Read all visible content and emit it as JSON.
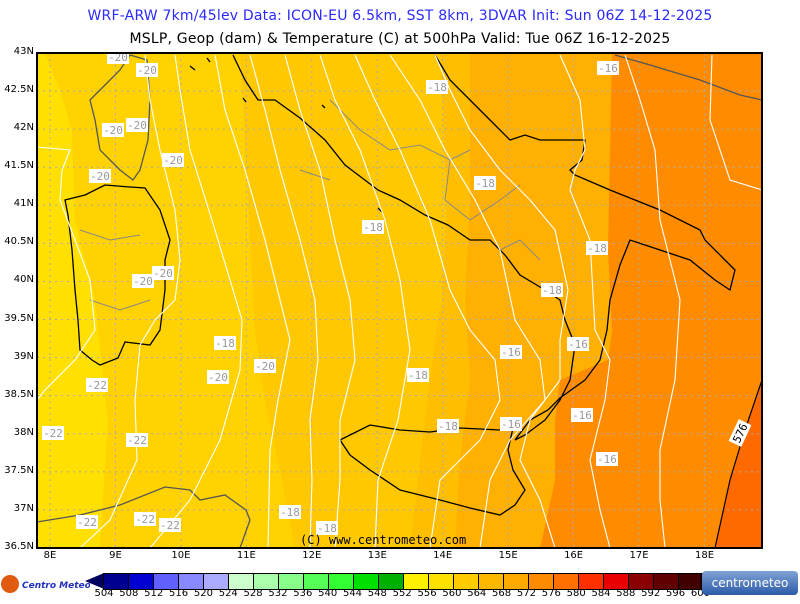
{
  "header": {
    "title": "WRF-ARW 7km/45lev  Data: ICON-EU 6.5km, SST 8km, 3DVAR  Init: Sun 06Z 14-12-2025",
    "subtitle": "MSLP, Geop (dam) & Temperature (C) at 500hPa  Valid: Tue 06Z 16-12-2025"
  },
  "map": {
    "lat_labels": [
      "43N",
      "42.5N",
      "42N",
      "41.5N",
      "41N",
      "40.5N",
      "40N",
      "39.5N",
      "39N",
      "38.5N",
      "38N",
      "37.5N",
      "37N",
      "36.5N"
    ],
    "lon_labels": [
      "8E",
      "9E",
      "10E",
      "11E",
      "12E",
      "13E",
      "14E",
      "15E",
      "16E",
      "17E",
      "18E"
    ],
    "temperature_labels": [
      "-20",
      "-20",
      "-20",
      "-20",
      "-20",
      "-20",
      "-20",
      "-20",
      "-18",
      "-16",
      "-18",
      "-18",
      "-18",
      "-18",
      "-16",
      "-16",
      "-18",
      "-20",
      "-20",
      "-22",
      "-18",
      "-22",
      "-22",
      "-18",
      "-16",
      "-16",
      "-16",
      "-18",
      "-18",
      "-22",
      "-22",
      "-22"
    ],
    "geopotential_labels": [
      "576"
    ],
    "copyright": "(C) www.centrometeo.com",
    "colors": {
      "contour_lines": "#ffffff",
      "coastline": "#000000",
      "borders": "#999999",
      "grid": "#aaaaaa"
    }
  },
  "colorbar": {
    "labels": [
      "504",
      "508",
      "512",
      "516",
      "520",
      "524",
      "528",
      "532",
      "536",
      "540",
      "544",
      "548",
      "552",
      "556",
      "560",
      "564",
      "568",
      "572",
      "576",
      "580",
      "584",
      "588",
      "592",
      "596",
      "600"
    ],
    "colors": [
      "#000090",
      "#0000d0",
      "#6060ff",
      "#8888ff",
      "#aaaaff",
      "#ccffcc",
      "#aaffaa",
      "#88ff88",
      "#55ff55",
      "#33ff33",
      "#00e000",
      "#00b000",
      "#fff200",
      "#ffe100",
      "#ffcc00",
      "#ffb800",
      "#ffaa00",
      "#ff8c00",
      "#ff7000",
      "#ff3000",
      "#e80000",
      "#8b0000",
      "#600000",
      "#400000"
    ],
    "under_color": "#000060",
    "over_color": "#200000"
  },
  "logos": {
    "left": "Centro Meteo Aquese",
    "right": "centrometeo"
  }
}
